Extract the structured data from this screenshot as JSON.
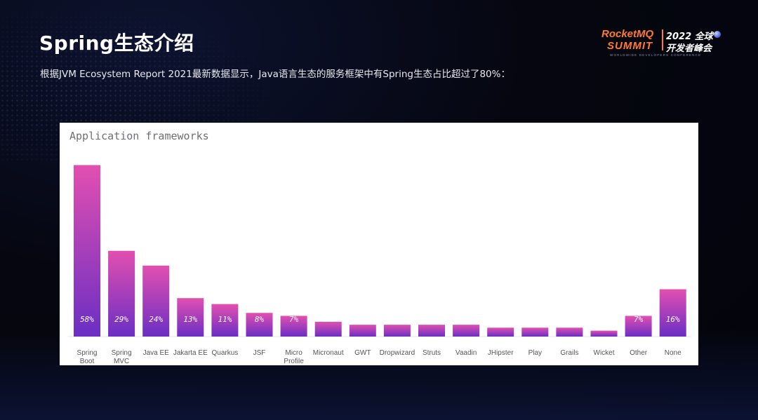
{
  "slide": {
    "title": "Spring生态介绍",
    "subtitle": "根据JVM Ecosystem Report 2021最新数据显示，Java语言生态的服务框架中有Spring生态占比超过了80%："
  },
  "logo": {
    "line1": "RocketMQ",
    "line2": "SUMMIT",
    "cn_line1": "2022 全球",
    "cn_line2": "开发者峰会",
    "tagline": "WORLDWIDE DEVELOPERS CONFERENCE",
    "brand_color": "#ff7a2f"
  },
  "chart_data": {
    "type": "bar",
    "title": "Application frameworks",
    "xlabel": "",
    "ylabel": "",
    "ylim": [
      0,
      60
    ],
    "grid": false,
    "legend": "none",
    "categories": [
      "Spring Boot",
      "Spring MVC",
      "Java EE",
      "Jakarta EE",
      "Quarkus",
      "JSF",
      "Micro Profile",
      "Micronaut",
      "GWT",
      "Dropwizard",
      "Struts",
      "Vaadin",
      "JHipster",
      "Play",
      "Grails",
      "Wicket",
      "Other",
      "None"
    ],
    "values": [
      58,
      29,
      24,
      13,
      11,
      8,
      7,
      5,
      4,
      4,
      4,
      4,
      3,
      3,
      3,
      2,
      7,
      16
    ],
    "value_labels": [
      "58%",
      "29%",
      "24%",
      "13%",
      "11%",
      "8%",
      "7%",
      "5%",
      "4%",
      "4%",
      "4%",
      "4%",
      "3%",
      "3%",
      "3%",
      "2%",
      "7%",
      "16%"
    ],
    "colors": {
      "bar_top": "#e24fb0",
      "bar_bottom": "#6a2fc4",
      "label": "#ffffff",
      "axis_text": "#555555"
    }
  }
}
